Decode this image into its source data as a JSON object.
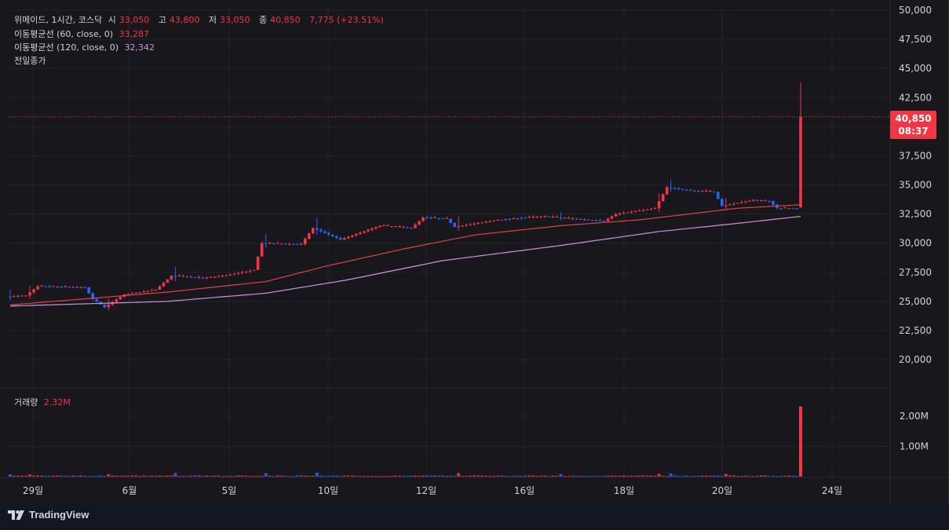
{
  "legend": {
    "symbol": "위메이드, 1시간, 코스닥",
    "open_label": "시",
    "open": "33,050",
    "high_label": "고",
    "high": "43,800",
    "low_label": "저",
    "low": "33,050",
    "close_label": "종",
    "close": "40,850",
    "change": "7,775 (+23.51%)",
    "ma60_label": "이동평균선 (60, close, 0)",
    "ma60_value": "33,287",
    "ma120_label": "이동평균선 (120, close, 0)",
    "ma120_value": "32,342",
    "prev_close_label": "전일종가",
    "volume_label": "거래량",
    "volume_value": "2.32M"
  },
  "price_badge": {
    "price": "40,850",
    "countdown": "08:37"
  },
  "branding": {
    "name": "TradingView"
  },
  "colors": {
    "up": "#f23645",
    "down": "#2962ff",
    "ma60": "#e0424a",
    "ma120": "#ce93d8",
    "background": "#17171c"
  },
  "chart_data": {
    "type": "candlestick",
    "title": "위메이드, 1시간, 코스닥",
    "y_ticks": [
      "50,000",
      "47,500",
      "45,000",
      "42,500",
      "40,000",
      "37,500",
      "35,000",
      "32,500",
      "30,000",
      "27,500",
      "25,000",
      "22,500",
      "20,000"
    ],
    "ylim": [
      17500,
      50000
    ],
    "x_ticks": [
      "29일",
      "6월",
      "5일",
      "10일",
      "12일",
      "16일",
      "18일",
      "20일",
      "24일"
    ],
    "volume_ticks": [
      "2.00M",
      "1.00M"
    ],
    "last_price": 40850,
    "anchors": [
      [
        0,
        25400
      ],
      [
        5,
        25500
      ],
      [
        8,
        26300
      ],
      [
        20,
        26200
      ],
      [
        22,
        25200
      ],
      [
        25,
        24500
      ],
      [
        30,
        25600
      ],
      [
        38,
        26000
      ],
      [
        42,
        27200
      ],
      [
        50,
        27000
      ],
      [
        57,
        27300
      ],
      [
        63,
        27700
      ],
      [
        65,
        30000
      ],
      [
        75,
        29900
      ],
      [
        78,
        31300
      ],
      [
        85,
        30300
      ],
      [
        95,
        31500
      ],
      [
        103,
        31300
      ],
      [
        106,
        32200
      ],
      [
        112,
        32100
      ],
      [
        114,
        31400
      ],
      [
        125,
        32000
      ],
      [
        131,
        32200
      ],
      [
        137,
        32300
      ],
      [
        140,
        32200
      ],
      [
        152,
        31900
      ],
      [
        155,
        32500
      ],
      [
        165,
        33000
      ],
      [
        168,
        34800
      ],
      [
        174,
        34500
      ],
      [
        180,
        34400
      ],
      [
        182,
        33200
      ],
      [
        190,
        33700
      ],
      [
        194,
        33600
      ],
      [
        196,
        33000
      ],
      [
        201,
        33000
      ]
    ],
    "ma60": [
      [
        0,
        24700
      ],
      [
        22,
        25300
      ],
      [
        40,
        25800
      ],
      [
        65,
        26700
      ],
      [
        80,
        28000
      ],
      [
        100,
        29500
      ],
      [
        118,
        30700
      ],
      [
        140,
        31500
      ],
      [
        160,
        32000
      ],
      [
        185,
        33000
      ],
      [
        201,
        33300
      ]
    ],
    "ma120": [
      [
        0,
        24600
      ],
      [
        40,
        25000
      ],
      [
        65,
        25700
      ],
      [
        85,
        26800
      ],
      [
        110,
        28500
      ],
      [
        140,
        29800
      ],
      [
        165,
        31000
      ],
      [
        185,
        31700
      ],
      [
        201,
        32300
      ]
    ],
    "spikes": [
      [
        0,
        1.3
      ],
      [
        5,
        1.2
      ],
      [
        25,
        1.3
      ],
      [
        42,
        1.8
      ],
      [
        65,
        2.0
      ],
      [
        78,
        2.2
      ],
      [
        114,
        2.2
      ],
      [
        140,
        1.2
      ],
      [
        165,
        1.5
      ],
      [
        168,
        1.5
      ],
      [
        182,
        1.4
      ],
      [
        201,
        1.2
      ]
    ],
    "last_candle": {
      "open": 33050,
      "high": 43800,
      "low": 33050,
      "close": 40850,
      "volume": 2320000
    }
  }
}
